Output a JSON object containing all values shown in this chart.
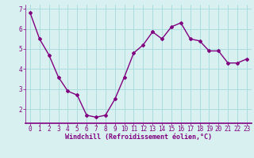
{
  "x": [
    0,
    1,
    2,
    3,
    4,
    5,
    6,
    7,
    8,
    9,
    10,
    11,
    12,
    13,
    14,
    15,
    16,
    17,
    18,
    19,
    20,
    21,
    22,
    23
  ],
  "y": [
    6.8,
    5.5,
    4.7,
    3.6,
    2.9,
    2.7,
    1.7,
    1.6,
    1.7,
    2.5,
    3.6,
    4.8,
    5.2,
    5.85,
    5.5,
    6.1,
    6.3,
    5.5,
    5.4,
    4.9,
    4.9,
    4.3,
    4.3,
    4.5
  ],
  "line_color": "#800080",
  "marker": "D",
  "marker_size": 2.0,
  "bg_color": "#d8f0f0",
  "grid_color": "#aadddd",
  "xlabel": "Windchill (Refroidissement éolien,°C)",
  "xlabel_color": "#800080",
  "tick_color": "#800080",
  "axis_color": "#800080",
  "ylim": [
    1.3,
    7.2
  ],
  "xlim": [
    -0.5,
    23.5
  ],
  "yticks": [
    2,
    3,
    4,
    5,
    6,
    7
  ],
  "xticks": [
    0,
    1,
    2,
    3,
    4,
    5,
    6,
    7,
    8,
    9,
    10,
    11,
    12,
    13,
    14,
    15,
    16,
    17,
    18,
    19,
    20,
    21,
    22,
    23
  ],
  "tick_fontsize": 5.5,
  "xlabel_fontsize": 6.0
}
